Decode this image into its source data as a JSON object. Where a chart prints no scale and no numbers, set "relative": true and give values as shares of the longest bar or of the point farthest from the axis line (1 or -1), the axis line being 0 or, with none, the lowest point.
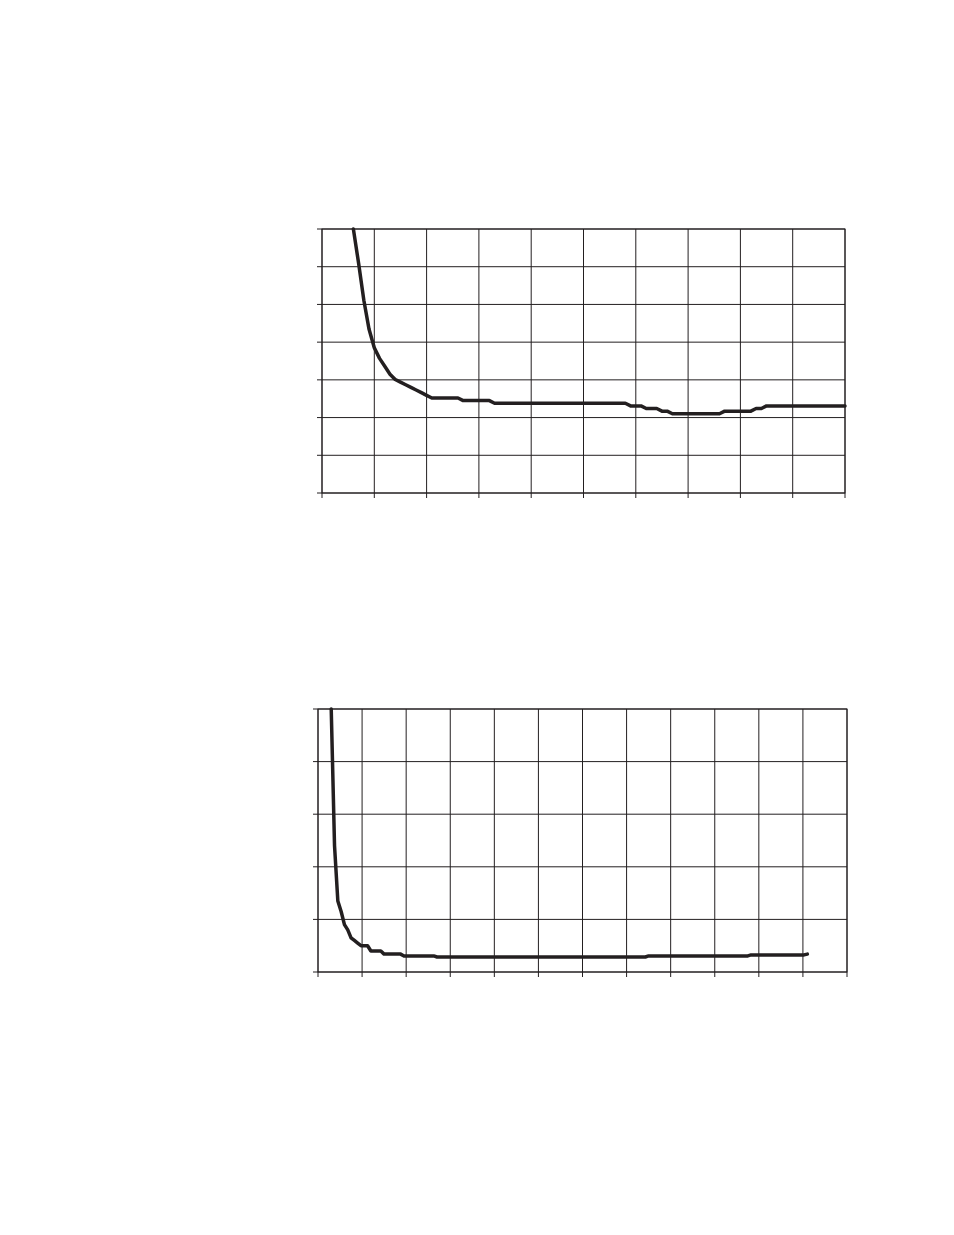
{
  "chart_data": [
    {
      "type": "line",
      "relative": true,
      "grid": true,
      "marker": "none",
      "line_style": "solid",
      "categories": [
        null,
        null,
        null,
        null,
        null,
        null,
        null,
        null,
        null,
        null,
        null,
        null,
        null,
        null,
        null,
        null,
        null,
        null,
        null,
        null,
        null,
        null,
        null,
        null,
        null,
        null,
        null,
        null,
        null,
        null,
        null,
        null,
        null,
        null,
        null,
        null,
        null,
        null,
        null,
        null,
        null,
        null,
        null,
        null,
        null,
        null,
        null,
        null,
        null,
        null,
        null,
        null,
        null,
        null,
        null,
        null,
        null,
        null,
        null,
        null,
        null,
        null,
        null,
        null,
        null,
        null,
        null,
        null,
        null,
        null,
        null,
        null,
        null,
        null,
        null,
        null,
        null,
        null,
        null,
        null,
        null,
        null,
        null,
        null,
        null,
        null,
        null,
        null,
        null,
        null,
        null,
        null,
        null,
        null,
        null,
        null,
        null,
        null,
        null,
        null,
        null
      ],
      "series": [
        {
          "color": "#231f20",
          "values": [
            null,
            null,
            null,
            null,
            null,
            null,
            1,
            0.87,
            0.73,
            0.62,
            0.55,
            0.51,
            0.48,
            0.45,
            0.43,
            0.42,
            0.41,
            0.4,
            0.39,
            0.38,
            0.37,
            0.36,
            0.36,
            0.36,
            0.36,
            0.36,
            0.36,
            0.35,
            0.35,
            0.35,
            0.35,
            0.35,
            0.35,
            0.34,
            0.34,
            0.34,
            0.34,
            0.34,
            0.34,
            0.34,
            0.34,
            0.34,
            0.34,
            0.34,
            0.34,
            0.34,
            0.34,
            0.34,
            0.34,
            0.34,
            0.34,
            0.34,
            0.34,
            0.34,
            0.34,
            0.34,
            0.34,
            0.34,
            0.34,
            0.33,
            0.33,
            0.33,
            0.32,
            0.32,
            0.32,
            0.31,
            0.31,
            0.3,
            0.3,
            0.3,
            0.3,
            0.3,
            0.3,
            0.3,
            0.3,
            0.3,
            0.3,
            0.31,
            0.31,
            0.31,
            0.31,
            0.31,
            0.31,
            0.32,
            0.32,
            0.33,
            0.33,
            0.33,
            0.33,
            0.33,
            0.33,
            0.33,
            0.33,
            0.33,
            0.33,
            0.33,
            0.33,
            0.33,
            0.33,
            0.33,
            0.33
          ]
        }
      ]
    },
    {
      "type": "line",
      "relative": true,
      "grid": true,
      "marker": "none",
      "line_style": "solid",
      "categories": [
        null,
        null,
        null,
        null,
        null,
        null,
        null,
        null,
        null,
        null,
        null,
        null,
        null,
        null,
        null,
        null,
        null,
        null,
        null,
        null,
        null,
        null,
        null,
        null,
        null,
        null,
        null,
        null,
        null,
        null,
        null,
        null,
        null,
        null,
        null,
        null,
        null,
        null,
        null,
        null,
        null,
        null,
        null,
        null,
        null,
        null,
        null,
        null,
        null,
        null,
        null,
        null,
        null,
        null,
        null,
        null,
        null,
        null,
        null,
        null,
        null,
        null,
        null,
        null,
        null,
        null,
        null,
        null,
        null,
        null,
        null,
        null,
        null,
        null,
        null,
        null,
        null,
        null,
        null,
        null,
        null,
        null,
        null,
        null,
        null,
        null,
        null,
        null,
        null,
        null,
        null,
        null,
        null,
        null,
        null,
        null,
        null,
        null,
        null,
        null,
        null,
        null,
        null,
        null,
        null,
        null,
        null,
        null,
        null,
        null,
        null,
        null,
        null,
        null,
        null,
        null,
        null,
        null,
        null,
        null,
        null,
        null,
        null,
        null,
        null,
        null,
        null,
        null,
        null,
        null,
        null,
        null,
        null,
        null,
        null,
        null,
        null,
        null,
        null,
        null,
        null,
        null,
        null,
        null,
        null,
        null,
        null,
        null,
        null,
        null,
        null,
        null,
        null,
        null,
        null,
        null,
        null,
        null,
        null,
        null,
        null
      ],
      "series": [
        {
          "color": "#231f20",
          "values": [
            null,
            null,
            null,
            null,
            1,
            0.48,
            0.27,
            0.23,
            0.18,
            0.16,
            0.13,
            0.12,
            0.11,
            0.1,
            0.1,
            0.1,
            0.08,
            0.08,
            0.08,
            0.08,
            0.068,
            0.068,
            0.068,
            0.068,
            0.068,
            0.068,
            0.061,
            0.061,
            0.061,
            0.061,
            0.061,
            0.061,
            0.061,
            0.061,
            0.061,
            0.061,
            0.057,
            0.057,
            0.057,
            0.057,
            0.057,
            0.057,
            0.057,
            0.057,
            0.057,
            0.057,
            0.057,
            0.057,
            0.057,
            0.057,
            0.057,
            0.057,
            0.057,
            0.057,
            0.057,
            0.057,
            0.057,
            0.057,
            0.057,
            0.057,
            0.057,
            0.057,
            0.057,
            0.057,
            0.057,
            0.057,
            0.057,
            0.057,
            0.057,
            0.057,
            0.057,
            0.057,
            0.057,
            0.057,
            0.057,
            0.057,
            0.057,
            0.057,
            0.057,
            0.057,
            0.057,
            0.057,
            0.057,
            0.057,
            0.057,
            0.057,
            0.057,
            0.057,
            0.057,
            0.057,
            0.057,
            0.057,
            0.057,
            0.057,
            0.057,
            0.057,
            0.057,
            0.057,
            0.057,
            0.057,
            0.061,
            0.061,
            0.061,
            0.061,
            0.061,
            0.061,
            0.061,
            0.061,
            0.061,
            0.061,
            0.061,
            0.061,
            0.061,
            0.061,
            0.061,
            0.061,
            0.061,
            0.061,
            0.061,
            0.061,
            0.061,
            0.061,
            0.061,
            0.061,
            0.061,
            0.061,
            0.061,
            0.061,
            0.061,
            0.061,
            0.061,
            0.065,
            0.065,
            0.065,
            0.065,
            0.065,
            0.065,
            0.065,
            0.065,
            0.065,
            0.065,
            0.065,
            0.065,
            0.065,
            0.065,
            0.065,
            0.065,
            0.065,
            0.068,
            null,
            null,
            null,
            null,
            null,
            null,
            null,
            null,
            null,
            null,
            null,
            null
          ]
        }
      ]
    }
  ]
}
